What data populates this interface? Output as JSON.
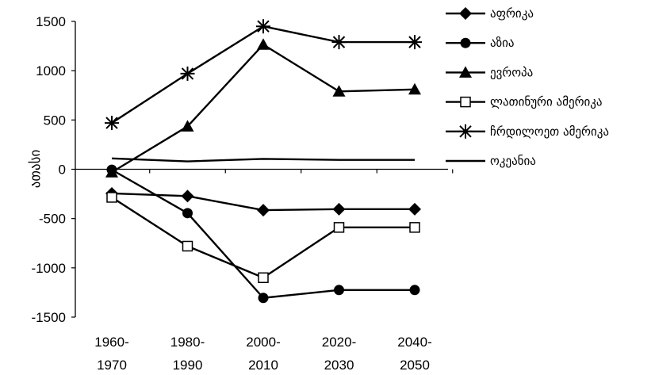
{
  "chart_data": {
    "type": "line",
    "title": "",
    "xlabel": "",
    "ylabel": "ათასი",
    "ylim": [
      -1500,
      1500
    ],
    "yticks": [
      "1500",
      "1000",
      "500",
      "0",
      "-500",
      "-1000",
      "-1500"
    ],
    "categories": [
      [
        "1960-",
        "1970"
      ],
      [
        "1980-",
        "1990"
      ],
      [
        "2000-",
        "2010"
      ],
      [
        "2020-",
        "2030"
      ],
      [
        "2040-",
        "2050"
      ]
    ],
    "legend_position": "right",
    "grid": false,
    "series": [
      {
        "name": "აფრიკა",
        "marker": "diamond",
        "values": [
          -245,
          -272,
          -415,
          -405,
          -405
        ]
      },
      {
        "name": "აზია",
        "marker": "circle",
        "values": [
          -5,
          -445,
          -1305,
          -1225,
          -1225
        ]
      },
      {
        "name": "ევროპა",
        "marker": "triangle",
        "values": [
          -30,
          435,
          1265,
          790,
          810
        ]
      },
      {
        "name": "ლათინური ამერიკა",
        "marker": "square-open",
        "values": [
          -285,
          -780,
          -1100,
          -590,
          -590
        ]
      },
      {
        "name": "ჩრდილოეთ ამერიკა",
        "marker": "asterisk",
        "values": [
          470,
          970,
          1450,
          1290,
          1290
        ]
      },
      {
        "name": "ოკეანია",
        "marker": "none",
        "values": [
          110,
          80,
          105,
          95,
          95
        ]
      }
    ]
  }
}
